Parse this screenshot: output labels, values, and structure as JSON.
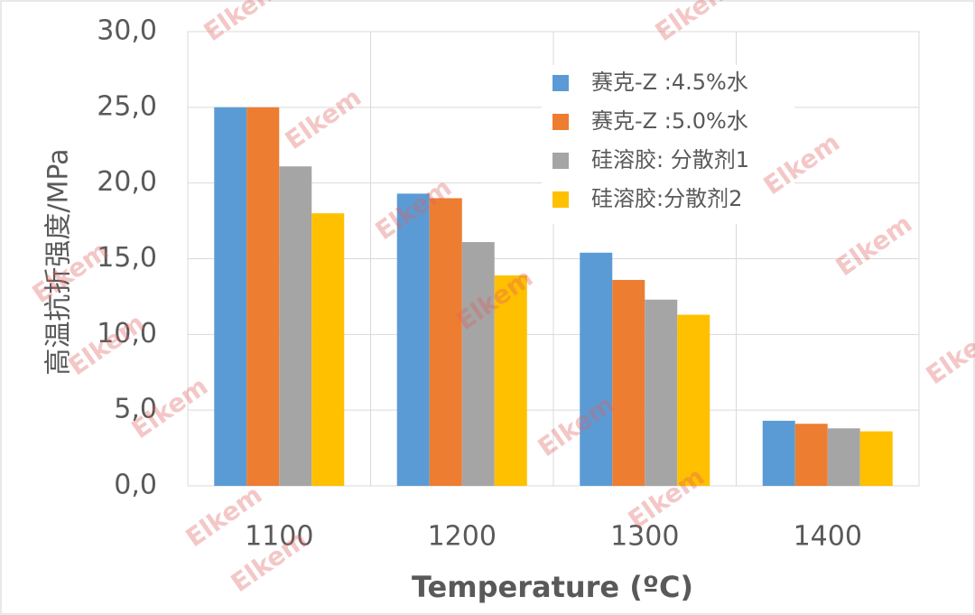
{
  "chart_data": {
    "type": "bar",
    "x_label": "Temperature (ºC)",
    "y_label": "高温抗折强度/MPa",
    "watermark": "Elkem",
    "categories": [
      "1100",
      "1200",
      "1300",
      "1400"
    ],
    "series": [
      {
        "name": "赛克-Z :4.5%水",
        "color": "#5b9bd5",
        "values": [
          25.0,
          19.3,
          15.4,
          4.3
        ]
      },
      {
        "name": "赛克-Z :5.0%水",
        "color": "#ed7d31",
        "values": [
          25.0,
          19.0,
          13.6,
          4.1
        ]
      },
      {
        "name": "硅溶胶: 分散剂1",
        "color": "#a5a5a5",
        "values": [
          21.1,
          16.1,
          12.3,
          3.8
        ]
      },
      {
        "name": "硅溶胶:分散剂2",
        "color": "#ffc000",
        "values": [
          18.0,
          13.9,
          11.3,
          3.6
        ]
      }
    ],
    "ylim": [
      0,
      30
    ],
    "yticks": [
      {
        "value": 0,
        "label": "0,0"
      },
      {
        "value": 5,
        "label": "5,0"
      },
      {
        "value": 10,
        "label": "10,0"
      },
      {
        "value": 15,
        "label": "15,0"
      },
      {
        "value": 20,
        "label": "20,0"
      },
      {
        "value": 25,
        "label": "25,0"
      },
      {
        "value": 30,
        "label": "30,0"
      }
    ],
    "grid": true,
    "legend": "top-right"
  }
}
